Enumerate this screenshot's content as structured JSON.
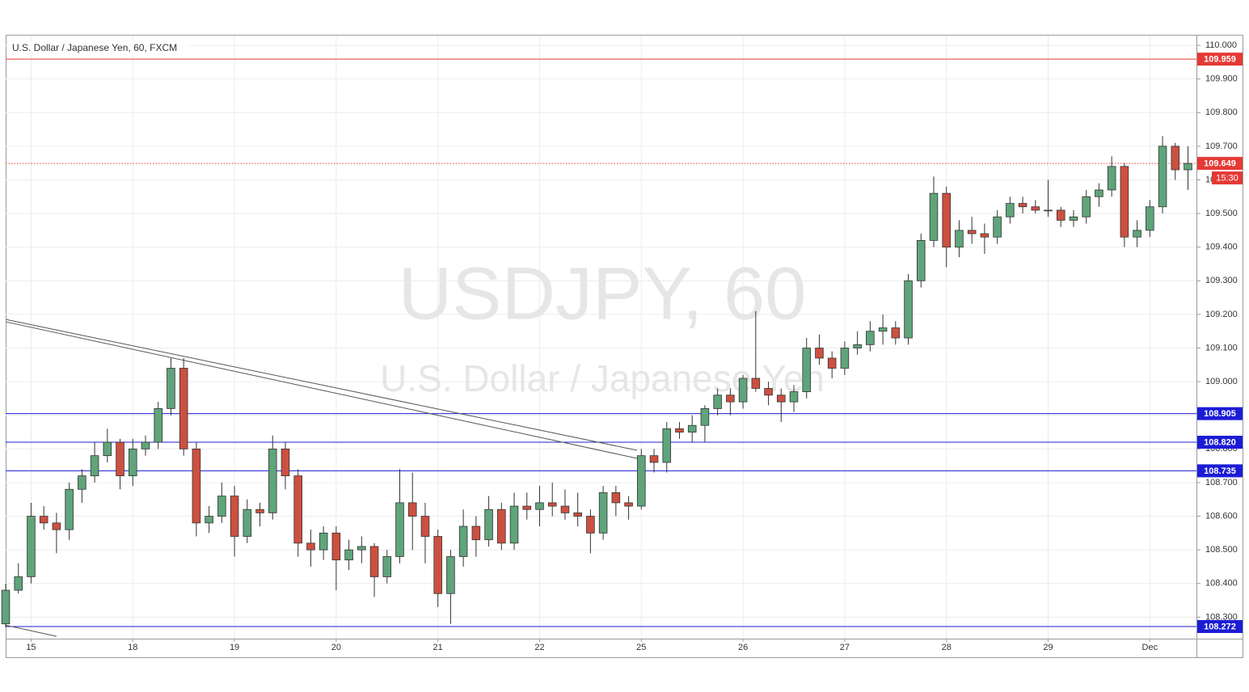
{
  "chart_data": {
    "type": "candlestick",
    "title": "U.S. Dollar / Japanese Yen, 60, FXCM",
    "watermark": "USDJPY, 60",
    "watermark_subtitle": "U.S. Dollar / Japanese Yen",
    "x": [
      0,
      3,
      6,
      9,
      12,
      15,
      18,
      21,
      24,
      27,
      30,
      33,
      36,
      39,
      42,
      45,
      48,
      51,
      54,
      57,
      60,
      63,
      66,
      69,
      72,
      75,
      78,
      81,
      84,
      87,
      90,
      93,
      96,
      99,
      102,
      105,
      108,
      111,
      114,
      117,
      120,
      123,
      126,
      129,
      132,
      135,
      138,
      141,
      144,
      147,
      150,
      153,
      156,
      159,
      162,
      165,
      168,
      171,
      174,
      177,
      180,
      183,
      186,
      189,
      192,
      195,
      198,
      201,
      204,
      207,
      210,
      213,
      216,
      219,
      222,
      225,
      228,
      231,
      234,
      237,
      240,
      243,
      246,
      249,
      252,
      255,
      258,
      261,
      264,
      267,
      270,
      273,
      276,
      279
    ],
    "open": [
      108.28,
      108.38,
      108.42,
      108.6,
      108.58,
      108.56,
      108.68,
      108.72,
      108.78,
      108.82,
      108.72,
      108.8,
      108.82,
      108.92,
      109.04,
      108.8,
      108.58,
      108.6,
      108.66,
      108.54,
      108.62,
      108.61,
      108.8,
      108.72,
      108.52,
      108.5,
      108.55,
      108.47,
      108.5,
      108.51,
      108.42,
      108.48,
      108.64,
      108.6,
      108.54,
      108.37,
      108.48,
      108.57,
      108.53,
      108.62,
      108.52,
      108.63,
      108.62,
      108.64,
      108.63,
      108.61,
      108.6,
      108.55,
      108.67,
      108.64,
      108.63,
      108.78,
      108.76,
      108.86,
      108.85,
      108.87,
      108.92,
      108.96,
      108.94,
      109.01,
      108.98,
      108.96,
      108.94,
      108.97,
      109.1,
      109.07,
      109.04,
      109.1,
      109.11,
      109.15,
      109.16,
      109.13,
      109.3,
      109.42,
      109.56,
      109.4,
      109.45,
      109.44,
      109.43,
      109.49,
      109.53,
      109.52,
      109.51,
      109.51,
      109.48,
      109.49,
      109.55,
      109.57,
      109.64,
      109.43,
      109.45,
      109.52,
      109.7,
      109.63
    ],
    "high": [
      108.4,
      108.46,
      108.64,
      108.63,
      108.61,
      108.7,
      108.74,
      108.82,
      108.86,
      108.83,
      108.83,
      108.84,
      108.94,
      109.07,
      109.07,
      108.82,
      108.63,
      108.7,
      108.69,
      108.65,
      108.64,
      108.84,
      108.82,
      108.74,
      108.56,
      108.57,
      108.57,
      108.53,
      108.54,
      108.52,
      108.5,
      108.74,
      108.73,
      108.64,
      108.56,
      108.5,
      108.62,
      108.6,
      108.66,
      108.64,
      108.67,
      108.67,
      108.69,
      108.7,
      108.68,
      108.67,
      108.62,
      108.69,
      108.69,
      108.66,
      108.8,
      108.8,
      108.88,
      108.88,
      108.9,
      108.93,
      108.98,
      108.98,
      109.02,
      109.21,
      109.0,
      108.98,
      108.99,
      109.13,
      109.14,
      109.09,
      109.12,
      109.15,
      109.18,
      109.2,
      109.18,
      109.32,
      109.44,
      109.61,
      109.58,
      109.48,
      109.49,
      109.47,
      109.51,
      109.55,
      109.55,
      109.54,
      109.6,
      109.52,
      109.51,
      109.57,
      109.59,
      109.67,
      109.65,
      109.48,
      109.54,
      109.73,
      109.71,
      109.7
    ],
    "low": [
      108.27,
      108.37,
      108.4,
      108.56,
      108.49,
      108.53,
      108.64,
      108.7,
      108.76,
      108.68,
      108.69,
      108.78,
      108.8,
      108.9,
      108.78,
      108.54,
      108.55,
      108.58,
      108.48,
      108.52,
      108.57,
      108.59,
      108.68,
      108.48,
      108.45,
      108.47,
      108.38,
      108.44,
      108.46,
      108.36,
      108.4,
      108.46,
      108.5,
      108.46,
      108.33,
      108.28,
      108.45,
      108.48,
      108.51,
      108.5,
      108.5,
      108.59,
      108.57,
      108.6,
      108.59,
      108.57,
      108.49,
      108.53,
      108.6,
      108.59,
      108.62,
      108.73,
      108.73,
      108.83,
      108.82,
      108.82,
      108.9,
      108.9,
      108.92,
      108.97,
      108.93,
      108.88,
      108.91,
      108.95,
      109.05,
      109.01,
      109.02,
      109.08,
      109.09,
      109.11,
      109.11,
      109.11,
      109.28,
      109.4,
      109.34,
      109.37,
      109.41,
      109.38,
      109.41,
      109.47,
      109.5,
      109.5,
      109.49,
      109.46,
      109.46,
      109.47,
      109.52,
      109.55,
      109.4,
      109.4,
      109.43,
      109.5,
      109.6,
      109.57
    ],
    "close": [
      108.38,
      108.42,
      108.6,
      108.58,
      108.56,
      108.68,
      108.72,
      108.78,
      108.82,
      108.72,
      108.8,
      108.82,
      108.92,
      109.04,
      108.8,
      108.58,
      108.6,
      108.66,
      108.54,
      108.62,
      108.61,
      108.8,
      108.72,
      108.52,
      108.5,
      108.55,
      108.47,
      108.5,
      108.51,
      108.42,
      108.48,
      108.64,
      108.6,
      108.54,
      108.37,
      108.48,
      108.57,
      108.53,
      108.62,
      108.52,
      108.63,
      108.62,
      108.64,
      108.63,
      108.61,
      108.6,
      108.55,
      108.67,
      108.64,
      108.63,
      108.78,
      108.76,
      108.86,
      108.85,
      108.87,
      108.92,
      108.96,
      108.94,
      109.01,
      108.98,
      108.96,
      108.94,
      108.97,
      109.1,
      109.07,
      109.04,
      109.1,
      109.11,
      109.15,
      109.16,
      109.13,
      109.3,
      109.42,
      109.56,
      109.4,
      109.45,
      109.44,
      109.43,
      109.49,
      109.53,
      109.52,
      109.51,
      109.51,
      109.48,
      109.49,
      109.55,
      109.57,
      109.64,
      109.43,
      109.45,
      109.52,
      109.7,
      109.63,
      109.649
    ],
    "up_color": "#5fa47b",
    "down_color": "#cc5040",
    "xlim": [
      0,
      281
    ],
    "xticks": [
      {
        "value": 6,
        "label": "15"
      },
      {
        "value": 30,
        "label": "18"
      },
      {
        "value": 54,
        "label": "19"
      },
      {
        "value": 78,
        "label": "20"
      },
      {
        "value": 102,
        "label": "21"
      },
      {
        "value": 126,
        "label": "22"
      },
      {
        "value": 150,
        "label": "25"
      },
      {
        "value": 174,
        "label": "26"
      },
      {
        "value": 198,
        "label": "27"
      },
      {
        "value": 222,
        "label": "28"
      },
      {
        "value": 246,
        "label": "29"
      },
      {
        "value": 270,
        "label": "Dec"
      }
    ],
    "ylim": [
      108.236,
      110.029
    ],
    "yticks": [
      {
        "value": 108.3,
        "label": "108.300"
      },
      {
        "value": 108.4,
        "label": "108.400"
      },
      {
        "value": 108.5,
        "label": "108.500"
      },
      {
        "value": 108.6,
        "label": "108.600"
      },
      {
        "value": 108.7,
        "label": "108.700"
      },
      {
        "value": 108.8,
        "label": "108.800"
      },
      {
        "value": 108.9,
        "label": "108.900"
      },
      {
        "value": 109.0,
        "label": "109.000"
      },
      {
        "value": 109.1,
        "label": "109.100"
      },
      {
        "value": 109.2,
        "label": "109.200"
      },
      {
        "value": 109.3,
        "label": "109.300"
      },
      {
        "value": 109.4,
        "label": "109.400"
      },
      {
        "value": 109.5,
        "label": "109.500"
      },
      {
        "value": 109.6,
        "label": "109.600"
      },
      {
        "value": 109.7,
        "label": "109.700"
      },
      {
        "value": 109.8,
        "label": "109.800"
      },
      {
        "value": 109.9,
        "label": "109.900"
      },
      {
        "value": 110.0,
        "label": "110.000"
      }
    ],
    "grid": true,
    "levels": [
      {
        "value": 109.959,
        "color": "#e53935",
        "style": "solid"
      },
      {
        "value": 109.649,
        "color": "#e53935",
        "style": "dotted"
      },
      {
        "value": 108.905,
        "color": "#1c1cd6",
        "style": "solid"
      },
      {
        "value": 108.82,
        "label": "108.820",
        "color": "#1c1cd6",
        "style": "solid"
      },
      {
        "value": 108.735,
        "color": "#1c1cd6",
        "style": "solid"
      },
      {
        "value": 108.272,
        "color": "#1c1cd6",
        "style": "solid"
      }
    ],
    "countdown": "15:30",
    "trendlines": [
      {
        "x": [
          0,
          149
        ],
        "y": [
          109.185,
          108.796
        ]
      },
      {
        "x": [
          0,
          149
        ],
        "y": [
          109.178,
          108.772
        ]
      },
      {
        "x": [
          0,
          12
        ],
        "y": [
          108.276,
          108.243
        ]
      }
    ]
  }
}
